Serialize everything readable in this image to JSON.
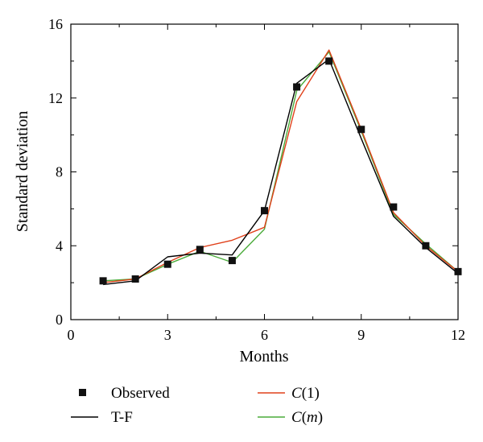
{
  "chart_data": {
    "type": "line",
    "title": "",
    "xlabel": "Months",
    "ylabel": "Standard deviation",
    "xlim": [
      0,
      12
    ],
    "ylim": [
      0,
      16
    ],
    "x_ticks": [
      0,
      3,
      6,
      9,
      12
    ],
    "y_ticks": [
      0,
      4,
      8,
      12,
      16
    ],
    "grid": false,
    "legend_position": "bottom",
    "series": [
      {
        "name": "Observed",
        "style": "markers",
        "marker": "square",
        "color": "#111111",
        "x": [
          1,
          2,
          3,
          4,
          5,
          6,
          7,
          8,
          9,
          10,
          11,
          12
        ],
        "y": [
          2.1,
          2.2,
          3.0,
          3.8,
          3.2,
          5.9,
          12.6,
          14.0,
          10.3,
          6.1,
          4.0,
          2.6
        ]
      },
      {
        "name": "T-F",
        "style": "line",
        "color": "#000000",
        "x": [
          1,
          2,
          3,
          4,
          5,
          6,
          7,
          8,
          9,
          10,
          11,
          12
        ],
        "y": [
          1.9,
          2.1,
          3.4,
          3.6,
          3.5,
          5.9,
          12.8,
          14.1,
          9.8,
          5.6,
          3.9,
          2.5
        ]
      },
      {
        "name_prefix": "C",
        "name_arg": "1",
        "style": "line",
        "color": "#e0401a",
        "x": [
          1,
          2,
          3,
          4,
          5,
          6,
          7,
          8,
          9,
          10,
          11,
          12
        ],
        "y": [
          2.0,
          2.2,
          3.1,
          3.9,
          4.3,
          5.0,
          11.8,
          14.6,
          10.3,
          5.8,
          4.0,
          2.6
        ]
      },
      {
        "name_prefix": "C",
        "name_arg": "m",
        "style": "line",
        "color": "#4aab3a",
        "x": [
          1,
          2,
          3,
          4,
          5,
          6,
          7,
          8,
          9,
          10,
          11,
          12
        ],
        "y": [
          2.1,
          2.2,
          3.0,
          3.7,
          3.1,
          4.9,
          12.4,
          14.5,
          10.2,
          5.7,
          4.1,
          2.6
        ]
      }
    ]
  }
}
